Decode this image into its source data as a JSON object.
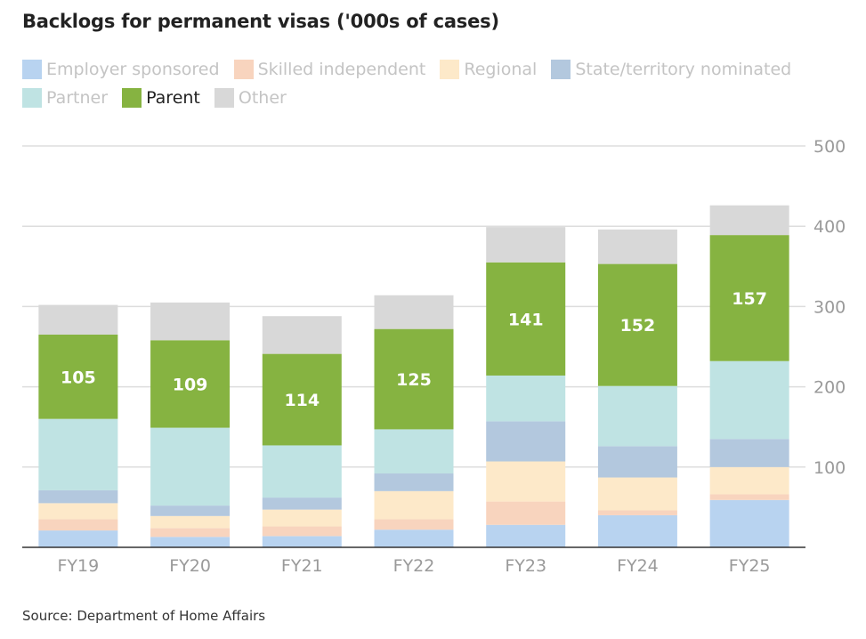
{
  "title": "Backlogs for permanent visas ('000s of cases)",
  "source": "Source: Department of Home Affairs",
  "legend": [
    {
      "label": "Employer sponsored",
      "color": "#b8d3f0",
      "highlighted": false
    },
    {
      "label": "Skilled independent",
      "color": "#f8d4be",
      "highlighted": false
    },
    {
      "label": "Regional",
      "color": "#fde9c9",
      "highlighted": false
    },
    {
      "label": "State/territory nominated",
      "color": "#b3c8de",
      "highlighted": false
    },
    {
      "label": "Partner",
      "color": "#bfe3e3",
      "highlighted": false
    },
    {
      "label": "Parent",
      "color": "#86b341",
      "highlighted": true
    },
    {
      "label": "Other",
      "color": "#d8d8d8",
      "highlighted": false
    }
  ],
  "chart_data": {
    "type": "bar",
    "stacked": true,
    "title": "Backlogs for permanent visas ('000s of cases)",
    "categories": [
      "FY19",
      "FY20",
      "FY21",
      "FY22",
      "FY23",
      "FY24",
      "FY25"
    ],
    "y_ticks": [
      100,
      200,
      300,
      400,
      500
    ],
    "ylim": [
      0,
      500
    ],
    "y_axis_side": "right",
    "grid": true,
    "legend_position": "top",
    "series": [
      {
        "name": "Employer sponsored",
        "color": "#b8d3f0",
        "values": [
          21,
          13,
          14,
          22,
          28,
          40,
          59
        ]
      },
      {
        "name": "Skilled independent",
        "color": "#f8d4be",
        "values": [
          14,
          11,
          12,
          13,
          29,
          6,
          7
        ]
      },
      {
        "name": "Regional",
        "color": "#fde9c9",
        "values": [
          20,
          15,
          21,
          35,
          50,
          41,
          34
        ]
      },
      {
        "name": "State/territory nominated",
        "color": "#b3c8de",
        "values": [
          16,
          13,
          15,
          22,
          50,
          39,
          35
        ]
      },
      {
        "name": "Partner",
        "color": "#bfe3e3",
        "values": [
          89,
          97,
          65,
          55,
          57,
          75,
          97
        ]
      },
      {
        "name": "Parent",
        "color": "#86b341",
        "values": [
          105,
          109,
          114,
          125,
          141,
          152,
          157
        ],
        "labeled": true
      },
      {
        "name": "Other",
        "color": "#d8d8d8",
        "values": [
          37,
          47,
          47,
          42,
          44,
          43,
          37
        ]
      }
    ]
  }
}
